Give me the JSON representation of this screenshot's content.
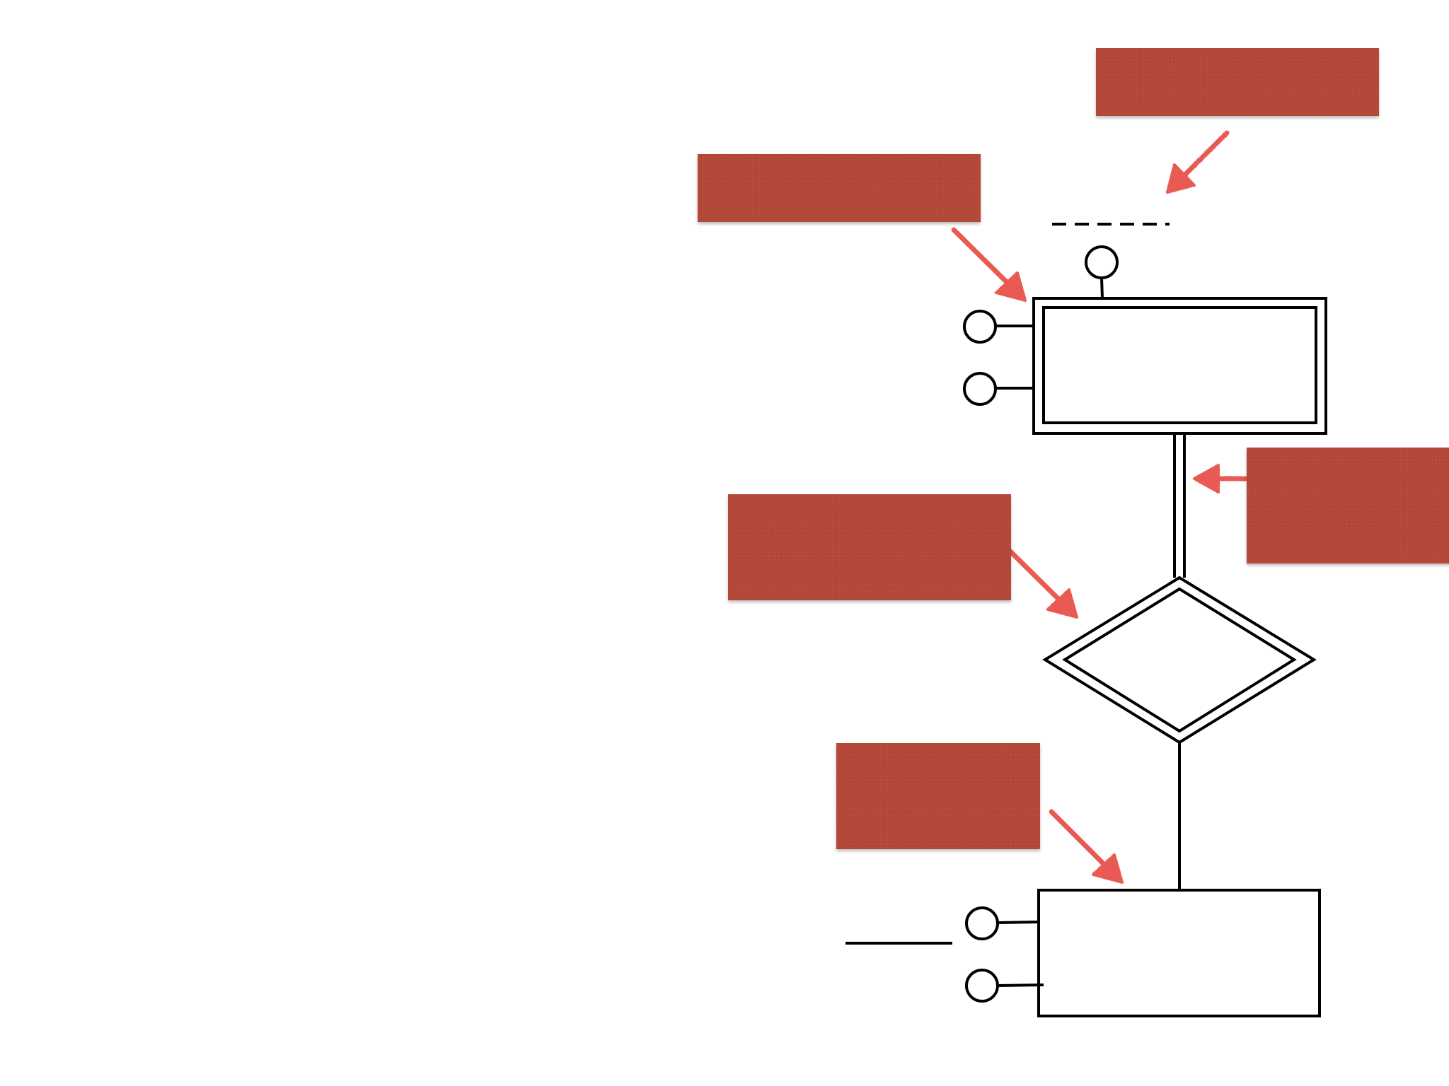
{
  "diagram": {
    "type": "er-diagram-blank-template",
    "colors": {
      "line": "#000000",
      "background": "#ffffff",
      "sticky_note": "#b34838",
      "arrow": "#e85a52"
    },
    "notes": [
      {
        "id": "note-1",
        "text": ""
      },
      {
        "id": "note-2",
        "text": ""
      },
      {
        "id": "note-3",
        "text": ""
      },
      {
        "id": "note-4",
        "text": ""
      },
      {
        "id": "note-5",
        "text": ""
      }
    ],
    "shapes": {
      "weak_entity": {
        "label": "",
        "border": "double"
      },
      "identifying_relationship": {
        "label": "",
        "border": "double"
      },
      "entity": {
        "label": "",
        "border": "single"
      },
      "attributes_weak_entity": [
        "",
        "",
        ""
      ],
      "attributes_entity": [
        "",
        ""
      ],
      "partial_key_underline": "dashed",
      "key_underline": "solid",
      "participation_upper": "total",
      "participation_lower": "partial"
    }
  }
}
